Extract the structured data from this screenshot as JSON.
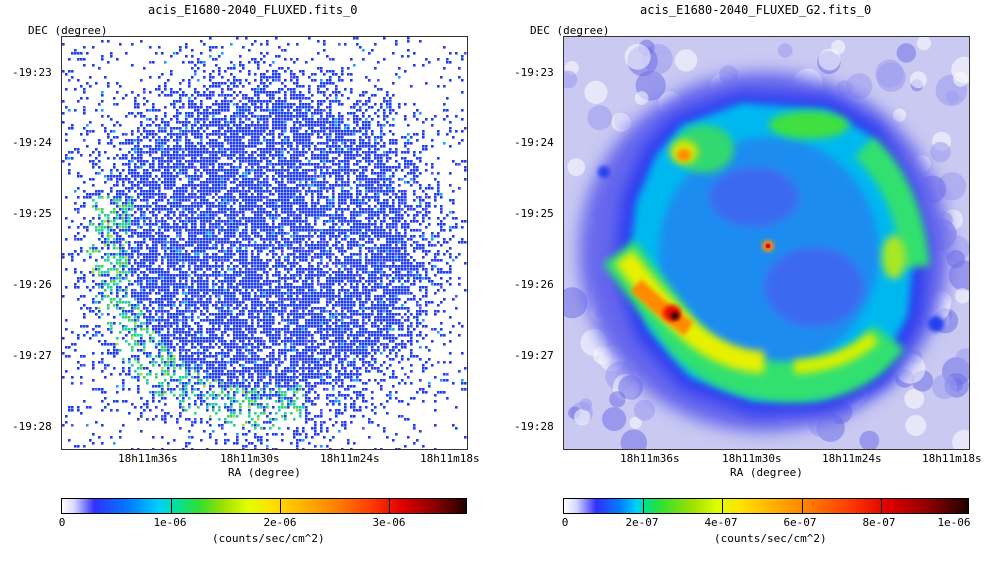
{
  "left": {
    "title": "acis_E1680-2040_FLUXED.fits_0",
    "ylabel": "DEC (degree)",
    "xlabel": "RA (degree)",
    "yticks": [
      "-19:23",
      "-19:24",
      "-19:25",
      "-19:26",
      "-19:27",
      "-19:28"
    ],
    "xticks": [
      "18h11m36s",
      "18h11m30s",
      "18h11m24s",
      "18h11m18s"
    ],
    "colorbar": {
      "ticks": [
        "0",
        "1e-06",
        "2e-06",
        "3e-06"
      ],
      "unit": "(counts/sec/cm^2)"
    }
  },
  "right": {
    "title": "acis_E1680-2040_FLUXED_G2.fits_0",
    "ylabel": "DEC (degree)",
    "xlabel": "RA (degree)",
    "yticks": [
      "-19:23",
      "-19:24",
      "-19:25",
      "-19:26",
      "-19:27",
      "-19:28"
    ],
    "xticks": [
      "18h11m36s",
      "18h11m30s",
      "18h11m24s",
      "18h11m18s"
    ],
    "colorbar": {
      "ticks": [
        "0",
        "2e-07",
        "4e-07",
        "6e-07",
        "8e-07",
        "1e-06"
      ],
      "unit": "(counts/sec/cm^2)"
    }
  }
}
